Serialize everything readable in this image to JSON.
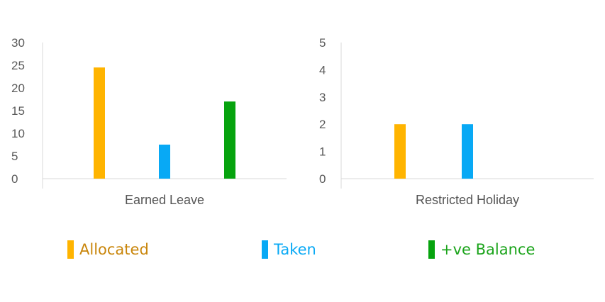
{
  "colors": {
    "allocated": "#FFB400",
    "taken": "#08A9F5",
    "balance": "#06A30E",
    "allocated_text": "#C9860B",
    "taken_text": "#08A9F5",
    "balance_text": "#1BA41B"
  },
  "chart_data": [
    {
      "type": "bar",
      "categories": [
        "Earned Leave"
      ],
      "series": [
        {
          "name": "Allocated",
          "values": [
            24.5
          ]
        },
        {
          "name": "Taken",
          "values": [
            7.5
          ]
        },
        {
          "name": "+ve Balance",
          "values": [
            17
          ]
        }
      ],
      "yticks": [
        "30",
        "25",
        "20",
        "15",
        "10",
        "5",
        "0"
      ],
      "ylim": [
        0,
        30
      ],
      "grid": false,
      "legend": "bottom"
    },
    {
      "type": "bar",
      "categories": [
        "Restricted Holiday"
      ],
      "series": [
        {
          "name": "Allocated",
          "values": [
            2
          ]
        },
        {
          "name": "Taken",
          "values": [
            2
          ]
        },
        {
          "name": "+ve Balance",
          "values": [
            0
          ]
        }
      ],
      "yticks": [
        "5",
        "4",
        "3",
        "2",
        "1",
        "0"
      ],
      "ylim": [
        0,
        5
      ],
      "grid": false,
      "legend": "bottom"
    }
  ],
  "legend": {
    "items": [
      {
        "label": "Allocated",
        "color_key": "allocated"
      },
      {
        "label": "Taken",
        "color_key": "taken"
      },
      {
        "label": "+ve Balance",
        "color_key": "balance"
      }
    ]
  }
}
